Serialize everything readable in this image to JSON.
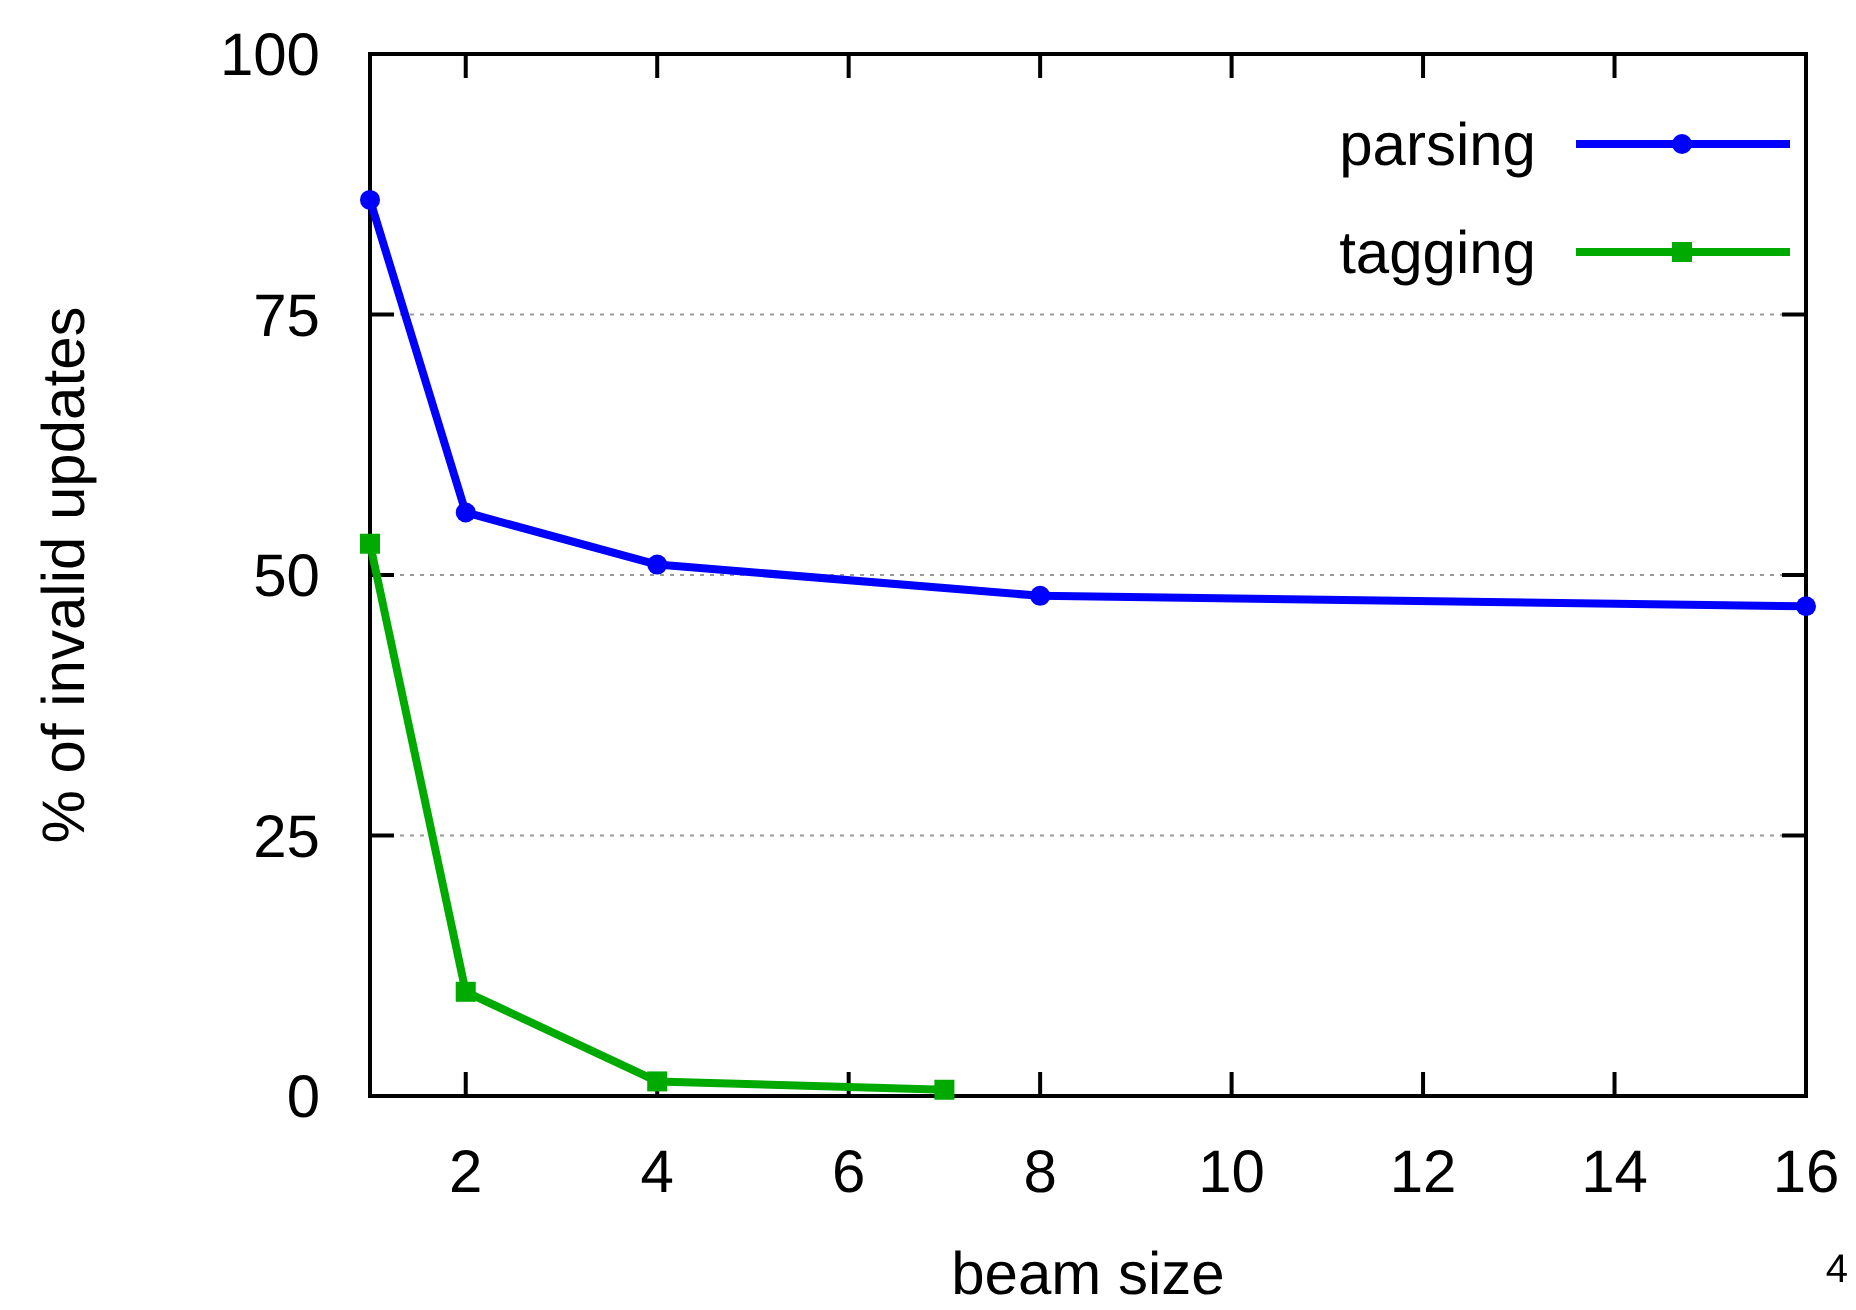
{
  "chart_data": {
    "type": "line",
    "xlabel": "beam size",
    "ylabel": "% of invalid updates",
    "xlim": [
      1,
      16
    ],
    "xticks": [
      2,
      4,
      6,
      8,
      10,
      12,
      14,
      16
    ],
    "ylim": [
      0,
      100
    ],
    "yticks": [
      0,
      25,
      50,
      75,
      100
    ],
    "grid": "y",
    "legend": "top right",
    "line_style": "solid",
    "annotations": [
      "4"
    ],
    "series": [
      {
        "name": "parsing",
        "color": "#0000ff",
        "marker": "circle",
        "x": [
          1,
          2,
          4,
          8,
          16
        ],
        "values": [
          86,
          56,
          51,
          48,
          47
        ]
      },
      {
        "name": "tagging",
        "color": "#00aa00",
        "marker": "square",
        "x": [
          1,
          2,
          4,
          7
        ],
        "values": [
          53,
          10,
          1.4,
          0.6
        ]
      }
    ]
  }
}
